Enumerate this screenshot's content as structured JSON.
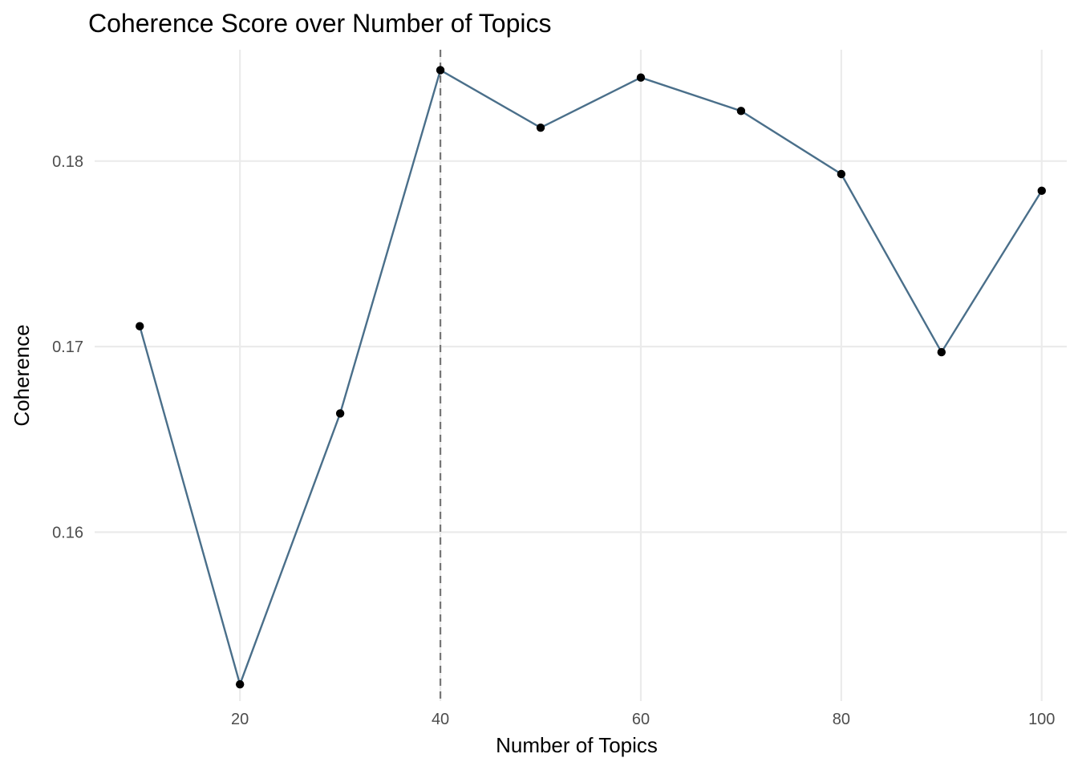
{
  "chart_data": {
    "type": "line",
    "title": "Coherence Score over Number of Topics",
    "xlabel": "Number of Topics",
    "ylabel": "Coherence",
    "x": [
      10,
      20,
      30,
      40,
      50,
      60,
      70,
      80,
      90,
      100
    ],
    "series": [
      {
        "values": [
          0.1711,
          0.1518,
          0.1664,
          0.1849,
          0.1818,
          0.1845,
          0.1827,
          0.1793,
          0.1697,
          0.1784
        ]
      }
    ],
    "xlim": [
      5.5,
      102.5
    ],
    "ylim": [
      0.1509,
      0.186
    ],
    "x_ticks": [
      20,
      40,
      60,
      80,
      100
    ],
    "x_tick_labels": [
      "20",
      "40",
      "60",
      "80",
      "100"
    ],
    "y_ticks": [
      0.16,
      0.17,
      0.18
    ],
    "y_tick_labels": [
      "0.16",
      "0.17",
      "0.18"
    ],
    "reference_line": {
      "orientation": "vertical",
      "x": 40,
      "style": "dashed"
    },
    "grid": true,
    "legend": "none",
    "colors": {
      "line": "#4a6f8a",
      "points": "#000000",
      "reference_line": "#767676",
      "grid": "#ebebeb"
    }
  }
}
